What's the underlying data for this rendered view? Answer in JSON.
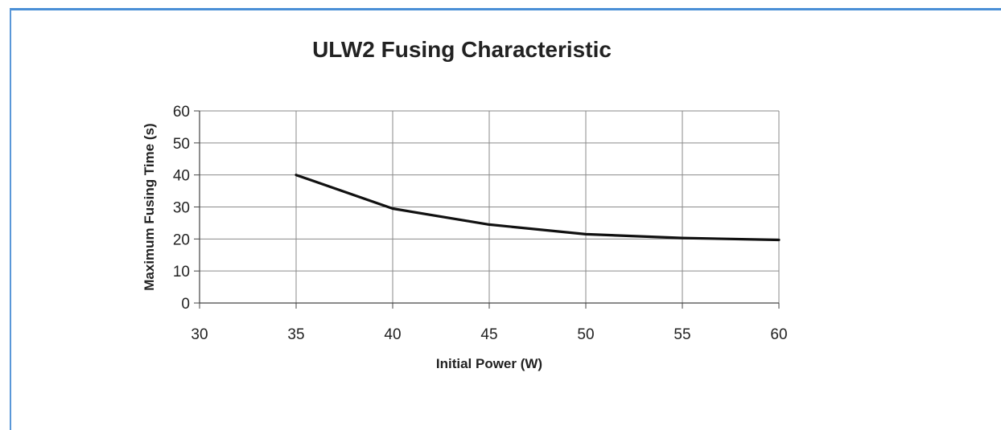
{
  "chart_data": {
    "type": "line",
    "title": "ULW2 Fusing Characteristic",
    "xlabel": "Initial Power (W)",
    "ylabel": "Maximum Fusing Time (s)",
    "xlim": [
      30,
      60
    ],
    "ylim": [
      0,
      60
    ],
    "xticks": [
      30,
      35,
      40,
      45,
      50,
      55,
      60
    ],
    "yticks": [
      0,
      10,
      20,
      30,
      40,
      50,
      60
    ],
    "grid": true,
    "series": [
      {
        "x": [
          35,
          40,
          45,
          50,
          55,
          60
        ],
        "y": [
          40,
          29.5,
          24.5,
          21.5,
          20.3,
          19.7
        ],
        "color": "#111111"
      }
    ]
  }
}
